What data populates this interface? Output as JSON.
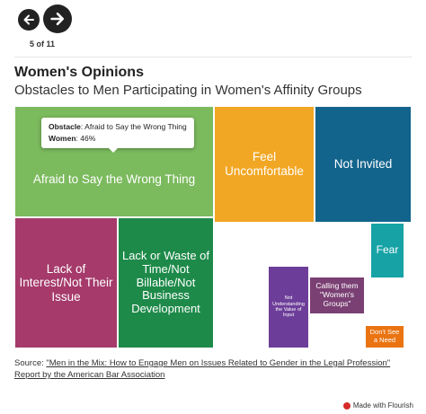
{
  "nav": {
    "counter": "5 of 11"
  },
  "colors": {
    "green_light": "#7cba5e",
    "magenta": "#a53a6b",
    "green_dark": "#1e8a4a",
    "orange_light": "#f2a724",
    "blue_dark": "#12648c",
    "teal": "#17a3a6",
    "purple": "#6d3e99",
    "plum": "#7a3f73",
    "orange": "#ea7412"
  },
  "chart_data": {
    "type": "treemap",
    "title": "Women's Opinions",
    "subtitle": "Obstacles to Men Participating in Women's Affinity Groups",
    "items": [
      {
        "label": "Afraid to Say the Wrong Thing",
        "value": 46,
        "color": "#7cba5e"
      },
      {
        "label": "Lack of Interest/Not Their Issue",
        "value": 23,
        "color": "#a53a6b"
      },
      {
        "label": "Lack or Waste of Time/Not Billable/Not Business Development",
        "value": 21,
        "color": "#1e8a4a"
      },
      {
        "label": "Feel Uncomfortable",
        "value": 13,
        "color": "#f2a724"
      },
      {
        "label": "Not Invited",
        "value": 14,
        "color": "#12648c"
      },
      {
        "label": "Fear",
        "value": 3,
        "color": "#17a3a6"
      },
      {
        "label": "Not Understanding the Value of Input",
        "value": 5,
        "color": "#6d3e99"
      },
      {
        "label": "Calling them \"Women's Groups\"",
        "value": 3,
        "color": "#7a3f73"
      },
      {
        "label": "Don't See a Need",
        "value": 1.2,
        "color": "#ea7412"
      }
    ],
    "tooltip": {
      "key1": "Obstacle",
      "val1": "Afraid to Say the Wrong Thing",
      "key2": "Women",
      "val2": "46%"
    }
  },
  "source": {
    "prefix": "Source: ",
    "link_text": "\"Men in the Mix: How to Engage Men on Issues Related to Gender in the Legal Profession\" Report by the American Bar Association"
  },
  "footer": {
    "made_with": "Made with Flourish"
  }
}
